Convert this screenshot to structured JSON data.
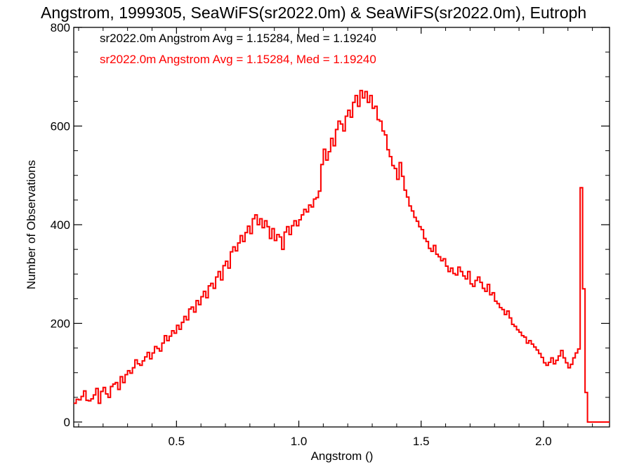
{
  "colors": {
    "background": "#ffffff",
    "axis": "#000000",
    "series1": "#000000",
    "series2": "#ff0000"
  },
  "chart_data": {
    "type": "histogram-step",
    "title": "Angstrom, 1999305, SeaWiFS(sr2022.0m) & SeaWiFS(sr2022.0m), Eutroph",
    "xlabel": "Angstrom ()",
    "ylabel": "Number of Observations",
    "xlim": [
      0.08,
      2.27
    ],
    "ylim": [
      -10,
      800
    ],
    "xticks": [
      0.5,
      1.0,
      1.5,
      2.0
    ],
    "xtick_labels": [
      "0.5",
      "1.0",
      "1.5",
      "2.0"
    ],
    "yticks": [
      0,
      200,
      400,
      600,
      800
    ],
    "ytick_labels": [
      "0",
      "200",
      "400",
      "600",
      "800"
    ],
    "legend_position": "top-left",
    "annotations": [
      "sr2022.0m Angstrom Avg = 1.15284, Med = 1.19240",
      "sr2022.0m Angstrom Avg = 1.15284, Med = 1.19240"
    ],
    "series": [
      {
        "name": "sr2022.0m",
        "color": "#000000",
        "x": [
          0.08,
          0.09,
          0.1,
          0.11,
          0.12,
          0.13,
          0.14,
          0.15,
          0.16,
          0.17,
          0.18,
          0.19,
          0.2,
          0.21,
          0.22,
          0.23,
          0.24,
          0.25,
          0.26,
          0.27,
          0.28,
          0.29,
          0.3,
          0.31,
          0.32,
          0.33,
          0.34,
          0.35,
          0.36,
          0.37,
          0.38,
          0.39,
          0.4,
          0.41,
          0.42,
          0.43,
          0.44,
          0.45,
          0.46,
          0.47,
          0.48,
          0.49,
          0.5,
          0.51,
          0.52,
          0.53,
          0.54,
          0.55,
          0.56,
          0.57,
          0.58,
          0.59,
          0.6,
          0.61,
          0.62,
          0.63,
          0.64,
          0.65,
          0.66,
          0.67,
          0.68,
          0.69,
          0.7,
          0.71,
          0.72,
          0.73,
          0.74,
          0.75,
          0.76,
          0.77,
          0.78,
          0.79,
          0.8,
          0.81,
          0.82,
          0.83,
          0.84,
          0.85,
          0.86,
          0.87,
          0.88,
          0.89,
          0.9,
          0.91,
          0.92,
          0.93,
          0.94,
          0.95,
          0.96,
          0.97,
          0.98,
          0.99,
          1.0,
          1.01,
          1.02,
          1.03,
          1.04,
          1.05,
          1.06,
          1.07,
          1.08,
          1.09,
          1.1,
          1.11,
          1.12,
          1.13,
          1.14,
          1.15,
          1.16,
          1.17,
          1.18,
          1.19,
          1.2,
          1.21,
          1.22,
          1.23,
          1.24,
          1.25,
          1.26,
          1.27,
          1.28,
          1.29,
          1.3,
          1.31,
          1.32,
          1.33,
          1.34,
          1.35,
          1.36,
          1.37,
          1.38,
          1.39,
          1.4,
          1.41,
          1.42,
          1.43,
          1.44,
          1.45,
          1.46,
          1.47,
          1.48,
          1.49,
          1.5,
          1.51,
          1.52,
          1.53,
          1.54,
          1.55,
          1.56,
          1.57,
          1.58,
          1.59,
          1.6,
          1.61,
          1.62,
          1.63,
          1.64,
          1.65,
          1.66,
          1.67,
          1.68,
          1.69,
          1.7,
          1.71,
          1.72,
          1.73,
          1.74,
          1.75,
          1.76,
          1.77,
          1.78,
          1.79,
          1.8,
          1.81,
          1.82,
          1.83,
          1.84,
          1.85,
          1.86,
          1.87,
          1.88,
          1.89,
          1.9,
          1.91,
          1.92,
          1.93,
          1.94,
          1.95,
          1.96,
          1.97,
          1.98,
          1.99,
          2.0,
          2.01,
          2.02,
          2.03,
          2.04,
          2.05,
          2.06,
          2.07,
          2.08,
          2.09,
          2.1,
          2.11,
          2.12,
          2.13,
          2.14,
          2.15,
          2.16,
          2.17,
          2.18,
          2.19,
          2.2,
          2.21,
          2.22,
          2.23,
          2.24,
          2.25,
          2.26
        ],
        "values": [
          38,
          46,
          45,
          52,
          63,
          44,
          43,
          47,
          55,
          68,
          38,
          62,
          70,
          57,
          50,
          72,
          77,
          80,
          66,
          92,
          80,
          96,
          104,
          99,
          110,
          126,
          118,
          115,
          124,
          132,
          141,
          128,
          140,
          153,
          149,
          144,
          160,
          175,
          165,
          174,
          185,
          180,
          196,
          188,
          202,
          214,
          207,
          229,
          233,
          223,
          246,
          238,
          254,
          265,
          252,
          276,
          281,
          271,
          294,
          305,
          288,
          317,
          326,
          312,
          345,
          355,
          347,
          363,
          378,
          366,
          384,
          397,
          382,
          412,
          420,
          400,
          412,
          394,
          408,
          396,
          372,
          392,
          368,
          380,
          375,
          350,
          385,
          396,
          380,
          398,
          408,
          398,
          410,
          420,
          431,
          426,
          440,
          436,
          452,
          455,
          468,
          522,
          553,
          531,
          548,
          575,
          560,
          593,
          610,
          604,
          590,
          620,
          632,
          618,
          648,
          662,
          640,
          672,
          657,
          670,
          648,
          662,
          636,
          640,
          613,
          610,
          590,
          582,
          552,
          538,
          520,
          514,
          492,
          526,
          498,
          470,
          456,
          438,
          428,
          415,
          407,
          396,
          390,
          372,
          366,
          352,
          346,
          358,
          340,
          335,
          327,
          331,
          316,
          305,
          312,
          301,
          298,
          314,
          305,
          296,
          290,
          305,
          280,
          275,
          287,
          294,
          283,
          271,
          265,
          279,
          258,
          262,
          245,
          240,
          232,
          228,
          218,
          225,
          211,
          198,
          194,
          187,
          182,
          175,
          172,
          160,
          165,
          158,
          152,
          146,
          139,
          131,
          120,
          115,
          121,
          130,
          118,
          125,
          134,
          145,
          130,
          120,
          110,
          117,
          130,
          140,
          148,
          475,
          270,
          60,
          0,
          0,
          0,
          0,
          0,
          0,
          0,
          0,
          0
        ]
      },
      {
        "name": "sr2022.0m",
        "color": "#ff0000",
        "x": [
          0.08,
          0.09,
          0.1,
          0.11,
          0.12,
          0.13,
          0.14,
          0.15,
          0.16,
          0.17,
          0.18,
          0.19,
          0.2,
          0.21,
          0.22,
          0.23,
          0.24,
          0.25,
          0.26,
          0.27,
          0.28,
          0.29,
          0.3,
          0.31,
          0.32,
          0.33,
          0.34,
          0.35,
          0.36,
          0.37,
          0.38,
          0.39,
          0.4,
          0.41,
          0.42,
          0.43,
          0.44,
          0.45,
          0.46,
          0.47,
          0.48,
          0.49,
          0.5,
          0.51,
          0.52,
          0.53,
          0.54,
          0.55,
          0.56,
          0.57,
          0.58,
          0.59,
          0.6,
          0.61,
          0.62,
          0.63,
          0.64,
          0.65,
          0.66,
          0.67,
          0.68,
          0.69,
          0.7,
          0.71,
          0.72,
          0.73,
          0.74,
          0.75,
          0.76,
          0.77,
          0.78,
          0.79,
          0.8,
          0.81,
          0.82,
          0.83,
          0.84,
          0.85,
          0.86,
          0.87,
          0.88,
          0.89,
          0.9,
          0.91,
          0.92,
          0.93,
          0.94,
          0.95,
          0.96,
          0.97,
          0.98,
          0.99,
          1.0,
          1.01,
          1.02,
          1.03,
          1.04,
          1.05,
          1.06,
          1.07,
          1.08,
          1.09,
          1.1,
          1.11,
          1.12,
          1.13,
          1.14,
          1.15,
          1.16,
          1.17,
          1.18,
          1.19,
          1.2,
          1.21,
          1.22,
          1.23,
          1.24,
          1.25,
          1.26,
          1.27,
          1.28,
          1.29,
          1.3,
          1.31,
          1.32,
          1.33,
          1.34,
          1.35,
          1.36,
          1.37,
          1.38,
          1.39,
          1.4,
          1.41,
          1.42,
          1.43,
          1.44,
          1.45,
          1.46,
          1.47,
          1.48,
          1.49,
          1.5,
          1.51,
          1.52,
          1.53,
          1.54,
          1.55,
          1.56,
          1.57,
          1.58,
          1.59,
          1.6,
          1.61,
          1.62,
          1.63,
          1.64,
          1.65,
          1.66,
          1.67,
          1.68,
          1.69,
          1.7,
          1.71,
          1.72,
          1.73,
          1.74,
          1.75,
          1.76,
          1.77,
          1.78,
          1.79,
          1.8,
          1.81,
          1.82,
          1.83,
          1.84,
          1.85,
          1.86,
          1.87,
          1.88,
          1.89,
          1.9,
          1.91,
          1.92,
          1.93,
          1.94,
          1.95,
          1.96,
          1.97,
          1.98,
          1.99,
          2.0,
          2.01,
          2.02,
          2.03,
          2.04,
          2.05,
          2.06,
          2.07,
          2.08,
          2.09,
          2.1,
          2.11,
          2.12,
          2.13,
          2.14,
          2.15,
          2.16,
          2.17,
          2.18,
          2.19,
          2.2,
          2.21,
          2.22,
          2.23,
          2.24,
          2.25,
          2.26
        ],
        "values": [
          38,
          46,
          45,
          52,
          63,
          44,
          43,
          47,
          55,
          68,
          38,
          62,
          70,
          57,
          50,
          72,
          77,
          80,
          66,
          92,
          80,
          96,
          104,
          99,
          110,
          126,
          118,
          115,
          124,
          132,
          141,
          128,
          140,
          153,
          149,
          144,
          160,
          175,
          165,
          174,
          185,
          180,
          196,
          188,
          202,
          214,
          207,
          229,
          233,
          223,
          246,
          238,
          254,
          265,
          252,
          276,
          281,
          271,
          294,
          305,
          288,
          317,
          326,
          312,
          345,
          355,
          347,
          363,
          378,
          366,
          384,
          397,
          382,
          412,
          420,
          400,
          412,
          394,
          408,
          396,
          372,
          392,
          368,
          380,
          375,
          350,
          385,
          396,
          380,
          398,
          408,
          398,
          410,
          420,
          431,
          426,
          440,
          436,
          452,
          455,
          468,
          522,
          553,
          531,
          548,
          575,
          560,
          593,
          610,
          604,
          590,
          620,
          632,
          618,
          648,
          662,
          640,
          672,
          657,
          670,
          648,
          662,
          636,
          640,
          613,
          610,
          590,
          582,
          552,
          538,
          520,
          514,
          492,
          526,
          498,
          470,
          456,
          438,
          428,
          415,
          407,
          396,
          390,
          372,
          366,
          352,
          346,
          358,
          340,
          335,
          327,
          331,
          316,
          305,
          312,
          301,
          298,
          314,
          305,
          296,
          290,
          305,
          280,
          275,
          287,
          294,
          283,
          271,
          265,
          279,
          258,
          262,
          245,
          240,
          232,
          228,
          218,
          225,
          211,
          198,
          194,
          187,
          182,
          175,
          172,
          160,
          165,
          158,
          152,
          146,
          139,
          131,
          120,
          115,
          121,
          130,
          118,
          125,
          134,
          145,
          130,
          120,
          110,
          117,
          130,
          140,
          148,
          475,
          270,
          60,
          0,
          0,
          0,
          0,
          0,
          0,
          0,
          0,
          0
        ]
      }
    ]
  }
}
